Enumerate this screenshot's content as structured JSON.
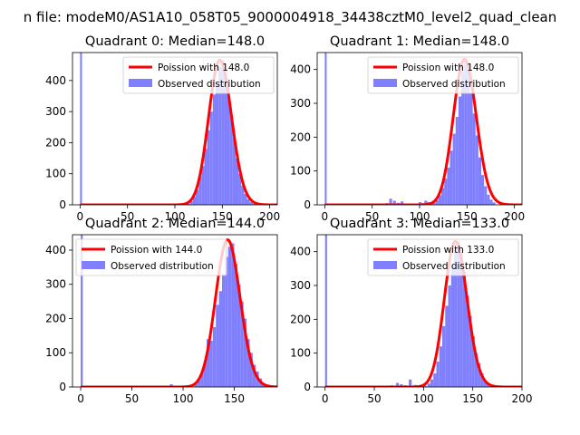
{
  "figure_title": "n file: modeM0/AS1A10_058T05_9000004918_34438cztM0_level2_quad_clean",
  "colors": {
    "hist": "#8080ff",
    "line": "#ff0000",
    "spike": "#8080ff"
  },
  "chart_data": [
    {
      "type": "bar",
      "title": "Quadrant 0: Median=148.0",
      "xlim": [
        -8,
        208
      ],
      "ylim": [
        0,
        490
      ],
      "xticks": [
        0,
        50,
        100,
        150,
        200
      ],
      "yticks": [
        0,
        100,
        200,
        300,
        400
      ],
      "spike": {
        "x": 0,
        "width": 2
      },
      "legend": {
        "position": "top-right",
        "line_label": "Poission with 148.0",
        "hist_label": "Observed distribution"
      },
      "poisson": {
        "mu": 148.0,
        "peak": 465
      },
      "bin_width": 3,
      "bins": [
        [
          113,
          4
        ],
        [
          116,
          12
        ],
        [
          119,
          26
        ],
        [
          122,
          48
        ],
        [
          125,
          90
        ],
        [
          128,
          125
        ],
        [
          131,
          180
        ],
        [
          134,
          240
        ],
        [
          137,
          300
        ],
        [
          140,
          355
        ],
        [
          143,
          390
        ],
        [
          146,
          445
        ],
        [
          149,
          465
        ],
        [
          152,
          420
        ],
        [
          155,
          350
        ],
        [
          158,
          290
        ],
        [
          161,
          215
        ],
        [
          164,
          150
        ],
        [
          167,
          100
        ],
        [
          170,
          62
        ],
        [
          173,
          35
        ],
        [
          176,
          18
        ],
        [
          179,
          9
        ],
        [
          182,
          4
        ]
      ]
    },
    {
      "type": "bar",
      "title": "Quadrant 1: Median=148.0",
      "xlim": [
        -8,
        208
      ],
      "ylim": [
        0,
        450
      ],
      "xticks": [
        0,
        50,
        100,
        150,
        200
      ],
      "yticks": [
        0,
        100,
        200,
        300,
        400
      ],
      "spike": {
        "x": 0,
        "width": 2
      },
      "legend": {
        "position": "top-right",
        "line_label": "Poission with 148.0",
        "hist_label": "Observed distribution"
      },
      "poisson": {
        "mu": 148.0,
        "peak": 430
      },
      "bin_width": 3,
      "bins": [
        [
          64,
          5
        ],
        [
          68,
          18
        ],
        [
          72,
          12
        ],
        [
          76,
          6
        ],
        [
          80,
          10
        ],
        [
          84,
          3
        ],
        [
          99,
          8
        ],
        [
          102,
          5
        ],
        [
          105,
          12
        ],
        [
          108,
          8
        ],
        [
          114,
          6
        ],
        [
          117,
          14
        ],
        [
          120,
          28
        ],
        [
          123,
          50
        ],
        [
          126,
          78
        ],
        [
          129,
          110
        ],
        [
          132,
          160
        ],
        [
          135,
          210
        ],
        [
          138,
          260
        ],
        [
          141,
          320
        ],
        [
          144,
          395
        ],
        [
          147,
          425
        ],
        [
          150,
          400
        ],
        [
          153,
          330
        ],
        [
          156,
          270
        ],
        [
          159,
          205
        ],
        [
          162,
          140
        ],
        [
          165,
          88
        ],
        [
          168,
          55
        ],
        [
          171,
          30
        ],
        [
          174,
          15
        ],
        [
          177,
          7
        ]
      ]
    },
    {
      "type": "bar",
      "title": "Quadrant 2: Median=144.0",
      "xlim": [
        -8,
        192
      ],
      "ylim": [
        0,
        445
      ],
      "xticks": [
        0,
        50,
        100,
        150
      ],
      "yticks": [
        0,
        100,
        200,
        300,
        400
      ],
      "spike": {
        "x": 0,
        "width": 2
      },
      "legend": {
        "position": "top-left",
        "line_label": "Poission with 144.0",
        "hist_label": "Observed distribution"
      },
      "poisson": {
        "mu": 144.0,
        "peak": 430
      },
      "bin_width": 3,
      "bins": [
        [
          87,
          8
        ],
        [
          111,
          8
        ],
        [
          114,
          20
        ],
        [
          117,
          40
        ],
        [
          120,
          75
        ],
        [
          123,
          140
        ],
        [
          126,
          135
        ],
        [
          129,
          175
        ],
        [
          132,
          240
        ],
        [
          135,
          280
        ],
        [
          138,
          330
        ],
        [
          141,
          380
        ],
        [
          144,
          410
        ],
        [
          147,
          420
        ],
        [
          150,
          360
        ],
        [
          153,
          300
        ],
        [
          156,
          250
        ],
        [
          159,
          200
        ],
        [
          162,
          140
        ],
        [
          165,
          100
        ],
        [
          168,
          65
        ],
        [
          171,
          45
        ],
        [
          174,
          25
        ],
        [
          177,
          10
        ]
      ]
    },
    {
      "type": "bar",
      "title": "Quadrant 3: Median=133.0",
      "xlim": [
        -8,
        200
      ],
      "ylim": [
        0,
        450
      ],
      "xticks": [
        0,
        50,
        100,
        150,
        200
      ],
      "yticks": [
        0,
        100,
        200,
        300,
        400
      ],
      "spike": {
        "x": 0,
        "width": 2
      },
      "legend": {
        "position": "top-right",
        "line_label": "Poission with 133.0",
        "hist_label": "Observed distribution"
      },
      "poisson": {
        "mu": 133.0,
        "peak": 430
      },
      "bin_width": 3,
      "bins": [
        [
          66,
          5
        ],
        [
          72,
          12
        ],
        [
          76,
          8
        ],
        [
          80,
          5
        ],
        [
          85,
          22
        ],
        [
          90,
          6
        ],
        [
          94,
          4
        ],
        [
          100,
          4
        ],
        [
          104,
          10
        ],
        [
          107,
          22
        ],
        [
          110,
          40
        ],
        [
          113,
          75
        ],
        [
          116,
          120
        ],
        [
          119,
          180
        ],
        [
          122,
          240
        ],
        [
          125,
          300
        ],
        [
          128,
          360
        ],
        [
          131,
          410
        ],
        [
          134,
          430
        ],
        [
          137,
          400
        ],
        [
          140,
          340
        ],
        [
          143,
          270
        ],
        [
          146,
          210
        ],
        [
          149,
          150
        ],
        [
          152,
          100
        ],
        [
          155,
          70
        ],
        [
          158,
          40
        ],
        [
          161,
          20
        ],
        [
          164,
          8
        ]
      ]
    }
  ]
}
